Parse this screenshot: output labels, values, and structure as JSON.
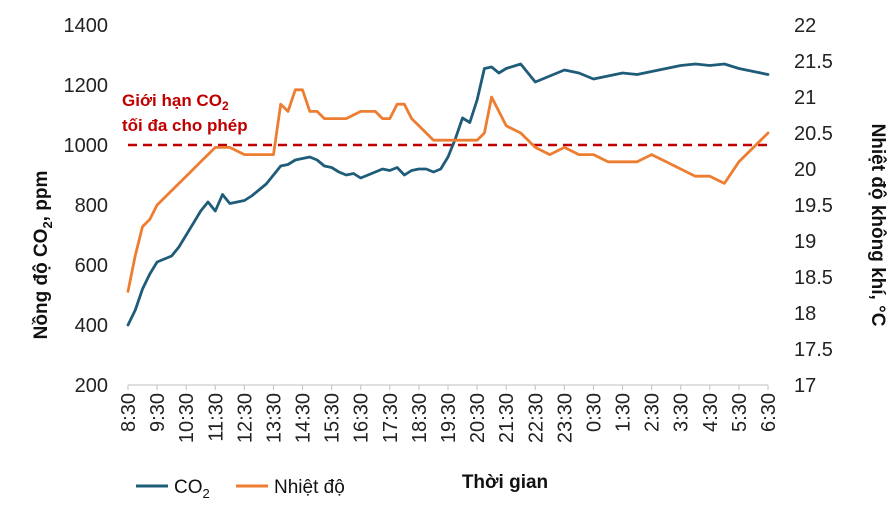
{
  "chart_data": {
    "type": "line",
    "xlabel": "Thời gian",
    "ylabel_left": {
      "text": "Nồng độ CO",
      "sub": "2",
      "suffix": ", ppm"
    },
    "ylabel_right": "Nhiệt độ không khí, °C",
    "ylim_left": [
      200,
      1400
    ],
    "yticks_left": [
      200,
      400,
      600,
      800,
      1000,
      1200,
      1400
    ],
    "ylim_right": [
      17,
      22
    ],
    "yticks_right": [
      "17",
      "17.5",
      "18",
      "18.5",
      "19",
      "19.5",
      "20",
      "20.5",
      "21",
      "21.5",
      "22"
    ],
    "x_range": [
      0,
      22
    ],
    "x_tick_labels": [
      "8:30",
      "9:30",
      "10:30",
      "11:30",
      "12:30",
      "13:30",
      "14:30",
      "15:30",
      "16:30",
      "17:30",
      "18:30",
      "19:30",
      "20:30",
      "21:30",
      "22:30",
      "23:30",
      "0:30",
      "1:30",
      "2:30",
      "3:30",
      "4:30",
      "5:30",
      "6:30"
    ],
    "x_unit": "hours since 8:30",
    "grid": false,
    "legend_position": "bottom-left",
    "annotation": {
      "line1_main": "Giới hạn CO",
      "line1_sub": "2",
      "line2": "tối đa cho phép",
      "y_value": 1000,
      "color": "#c00000"
    },
    "series": [
      {
        "name": "CO",
        "name_sub": "2",
        "axis": "left",
        "color": "#1f5c7a",
        "x": [
          0,
          0.25,
          0.5,
          0.75,
          1,
          1.25,
          1.5,
          1.75,
          2,
          2.25,
          2.5,
          2.75,
          3,
          3.25,
          3.5,
          3.75,
          4,
          4.25,
          4.5,
          4.75,
          5,
          5.25,
          5.5,
          5.75,
          6,
          6.25,
          6.5,
          6.75,
          7,
          7.25,
          7.5,
          7.75,
          8,
          8.25,
          8.5,
          8.75,
          9,
          9.25,
          9.5,
          9.75,
          10,
          10.25,
          10.5,
          10.75,
          11,
          11.25,
          11.5,
          11.75,
          12,
          12.25,
          12.5,
          12.75,
          13,
          13.5,
          14,
          14.5,
          15,
          15.5,
          16,
          16.5,
          17,
          17.5,
          18,
          18.5,
          19,
          19.5,
          20,
          20.5,
          21,
          21.5,
          22
        ],
        "values": [
          400,
          450,
          520,
          570,
          610,
          620,
          630,
          660,
          700,
          740,
          780,
          810,
          780,
          835,
          805,
          810,
          815,
          830,
          850,
          870,
          900,
          930,
          935,
          950,
          955,
          960,
          950,
          930,
          925,
          910,
          900,
          905,
          890,
          900,
          910,
          920,
          915,
          925,
          900,
          915,
          920,
          920,
          910,
          920,
          960,
          1020,
          1090,
          1075,
          1150,
          1255,
          1260,
          1240,
          1255,
          1270,
          1210,
          1230,
          1250,
          1240,
          1220,
          1230,
          1240,
          1235,
          1245,
          1255,
          1265,
          1270,
          1265,
          1270,
          1255,
          1245,
          1235
        ]
      },
      {
        "name": "Nhiệt độ",
        "axis": "right",
        "color": "#ed7d31",
        "x": [
          0,
          0.25,
          0.5,
          0.75,
          1,
          1.5,
          2,
          2.5,
          3,
          3.5,
          4,
          4.5,
          5,
          5.25,
          5.5,
          5.75,
          6,
          6.25,
          6.5,
          6.75,
          7,
          7.25,
          7.5,
          8,
          8.5,
          8.75,
          9,
          9.25,
          9.5,
          9.75,
          10,
          10.5,
          11,
          11.5,
          11.75,
          12,
          12.25,
          12.5,
          12.75,
          13,
          13.5,
          14,
          14.5,
          15,
          15.5,
          16,
          16.5,
          17,
          17.5,
          18,
          18.5,
          19,
          19.5,
          20,
          20.5,
          21,
          21.5,
          22
        ],
        "values": [
          18.3,
          18.8,
          19.2,
          19.3,
          19.5,
          19.7,
          19.9,
          20.1,
          20.3,
          20.3,
          20.2,
          20.2,
          20.2,
          20.9,
          20.8,
          21.1,
          21.1,
          20.8,
          20.8,
          20.7,
          20.7,
          20.7,
          20.7,
          20.8,
          20.8,
          20.7,
          20.7,
          20.9,
          20.9,
          20.7,
          20.6,
          20.4,
          20.4,
          20.4,
          20.4,
          20.4,
          20.5,
          21.0,
          20.8,
          20.6,
          20.5,
          20.3,
          20.2,
          20.3,
          20.2,
          20.2,
          20.1,
          20.1,
          20.1,
          20.2,
          20.1,
          20.0,
          19.9,
          19.9,
          19.8,
          20.1,
          20.3,
          20.5
        ]
      }
    ]
  }
}
